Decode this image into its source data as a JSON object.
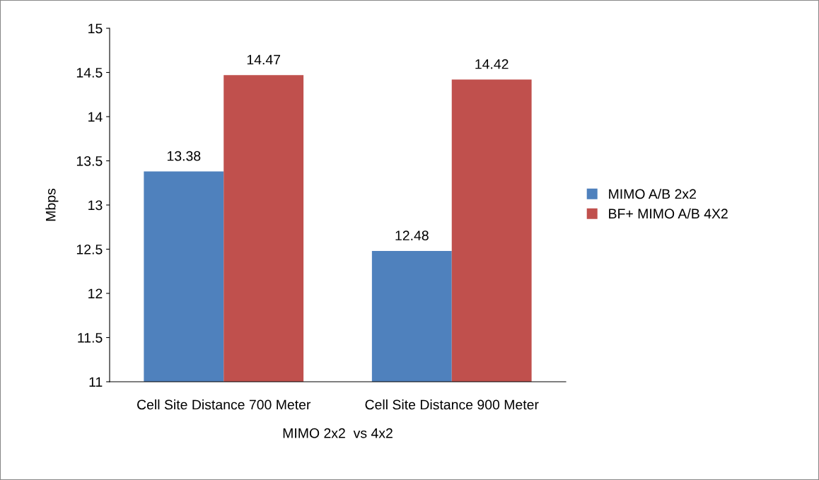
{
  "chart_data": {
    "type": "bar",
    "xlabel": "MIMO 2x2  vs 4x2",
    "ylabel": "Mbps",
    "categories": [
      "Cell Site Distance 700 Meter",
      "Cell Site Distance 900 Meter"
    ],
    "series": [
      {
        "name": "MIMO A/B 2x2",
        "color": "#4f81bd",
        "values": [
          13.38,
          12.48
        ]
      },
      {
        "name": "BF+ MIMO A/B 4X2",
        "color": "#c0504d",
        "values": [
          14.47,
          14.42
        ]
      }
    ],
    "ylim": [
      11,
      15
    ],
    "yticks": [
      11,
      11.5,
      12,
      12.5,
      13,
      13.5,
      14,
      14.5,
      15
    ],
    "grid": false,
    "legend": "right",
    "data_labels": true
  }
}
